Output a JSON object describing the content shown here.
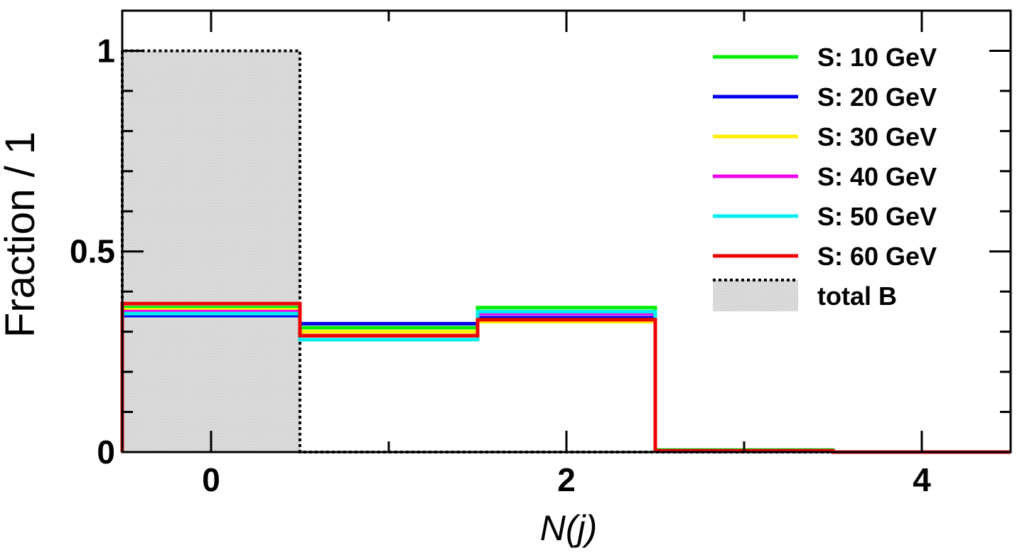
{
  "chart_data": {
    "type": "histogram",
    "xlabel": "N(j)",
    "ylabel": "Fraction / 1",
    "xlim": [
      -0.5,
      4.5
    ],
    "ylim": [
      0,
      1.1
    ],
    "x_ticks": [
      0,
      2,
      4
    ],
    "x_tick_labels": [
      "0",
      "2",
      "4"
    ],
    "y_ticks": [
      0,
      0.5,
      1
    ],
    "y_tick_labels": [
      "0",
      "0.5",
      "1"
    ],
    "bin_edges": [
      -0.5,
      0.5,
      1.5,
      2.5,
      3.5,
      4.5
    ],
    "legend_position": "top-right",
    "grid": false,
    "background": {
      "name": "total B",
      "color": "#000000",
      "fill": "#d9d9d9",
      "values": [
        1.0,
        0,
        0,
        0,
        0
      ]
    },
    "series": [
      {
        "name": "S: 10 GeV",
        "color": "#00ee00",
        "values": [
          0.36,
          0.31,
          0.36,
          0.005,
          0
        ]
      },
      {
        "name": "S: 20 GeV",
        "color": "#0000ee",
        "values": [
          0.34,
          0.32,
          0.335,
          0.003,
          0
        ]
      },
      {
        "name": "S: 30 GeV",
        "color": "#ffee00",
        "values": [
          0.355,
          0.3,
          0.325,
          0.002,
          0
        ]
      },
      {
        "name": "S: 40 GeV",
        "color": "#ee00ee",
        "values": [
          0.35,
          0.29,
          0.345,
          0.002,
          0
        ]
      },
      {
        "name": "S: 50 GeV",
        "color": "#00eeee",
        "values": [
          0.345,
          0.28,
          0.35,
          0.002,
          0
        ]
      },
      {
        "name": "S: 60 GeV",
        "color": "#ee0000",
        "values": [
          0.37,
          0.29,
          0.33,
          0.003,
          0
        ]
      }
    ]
  }
}
